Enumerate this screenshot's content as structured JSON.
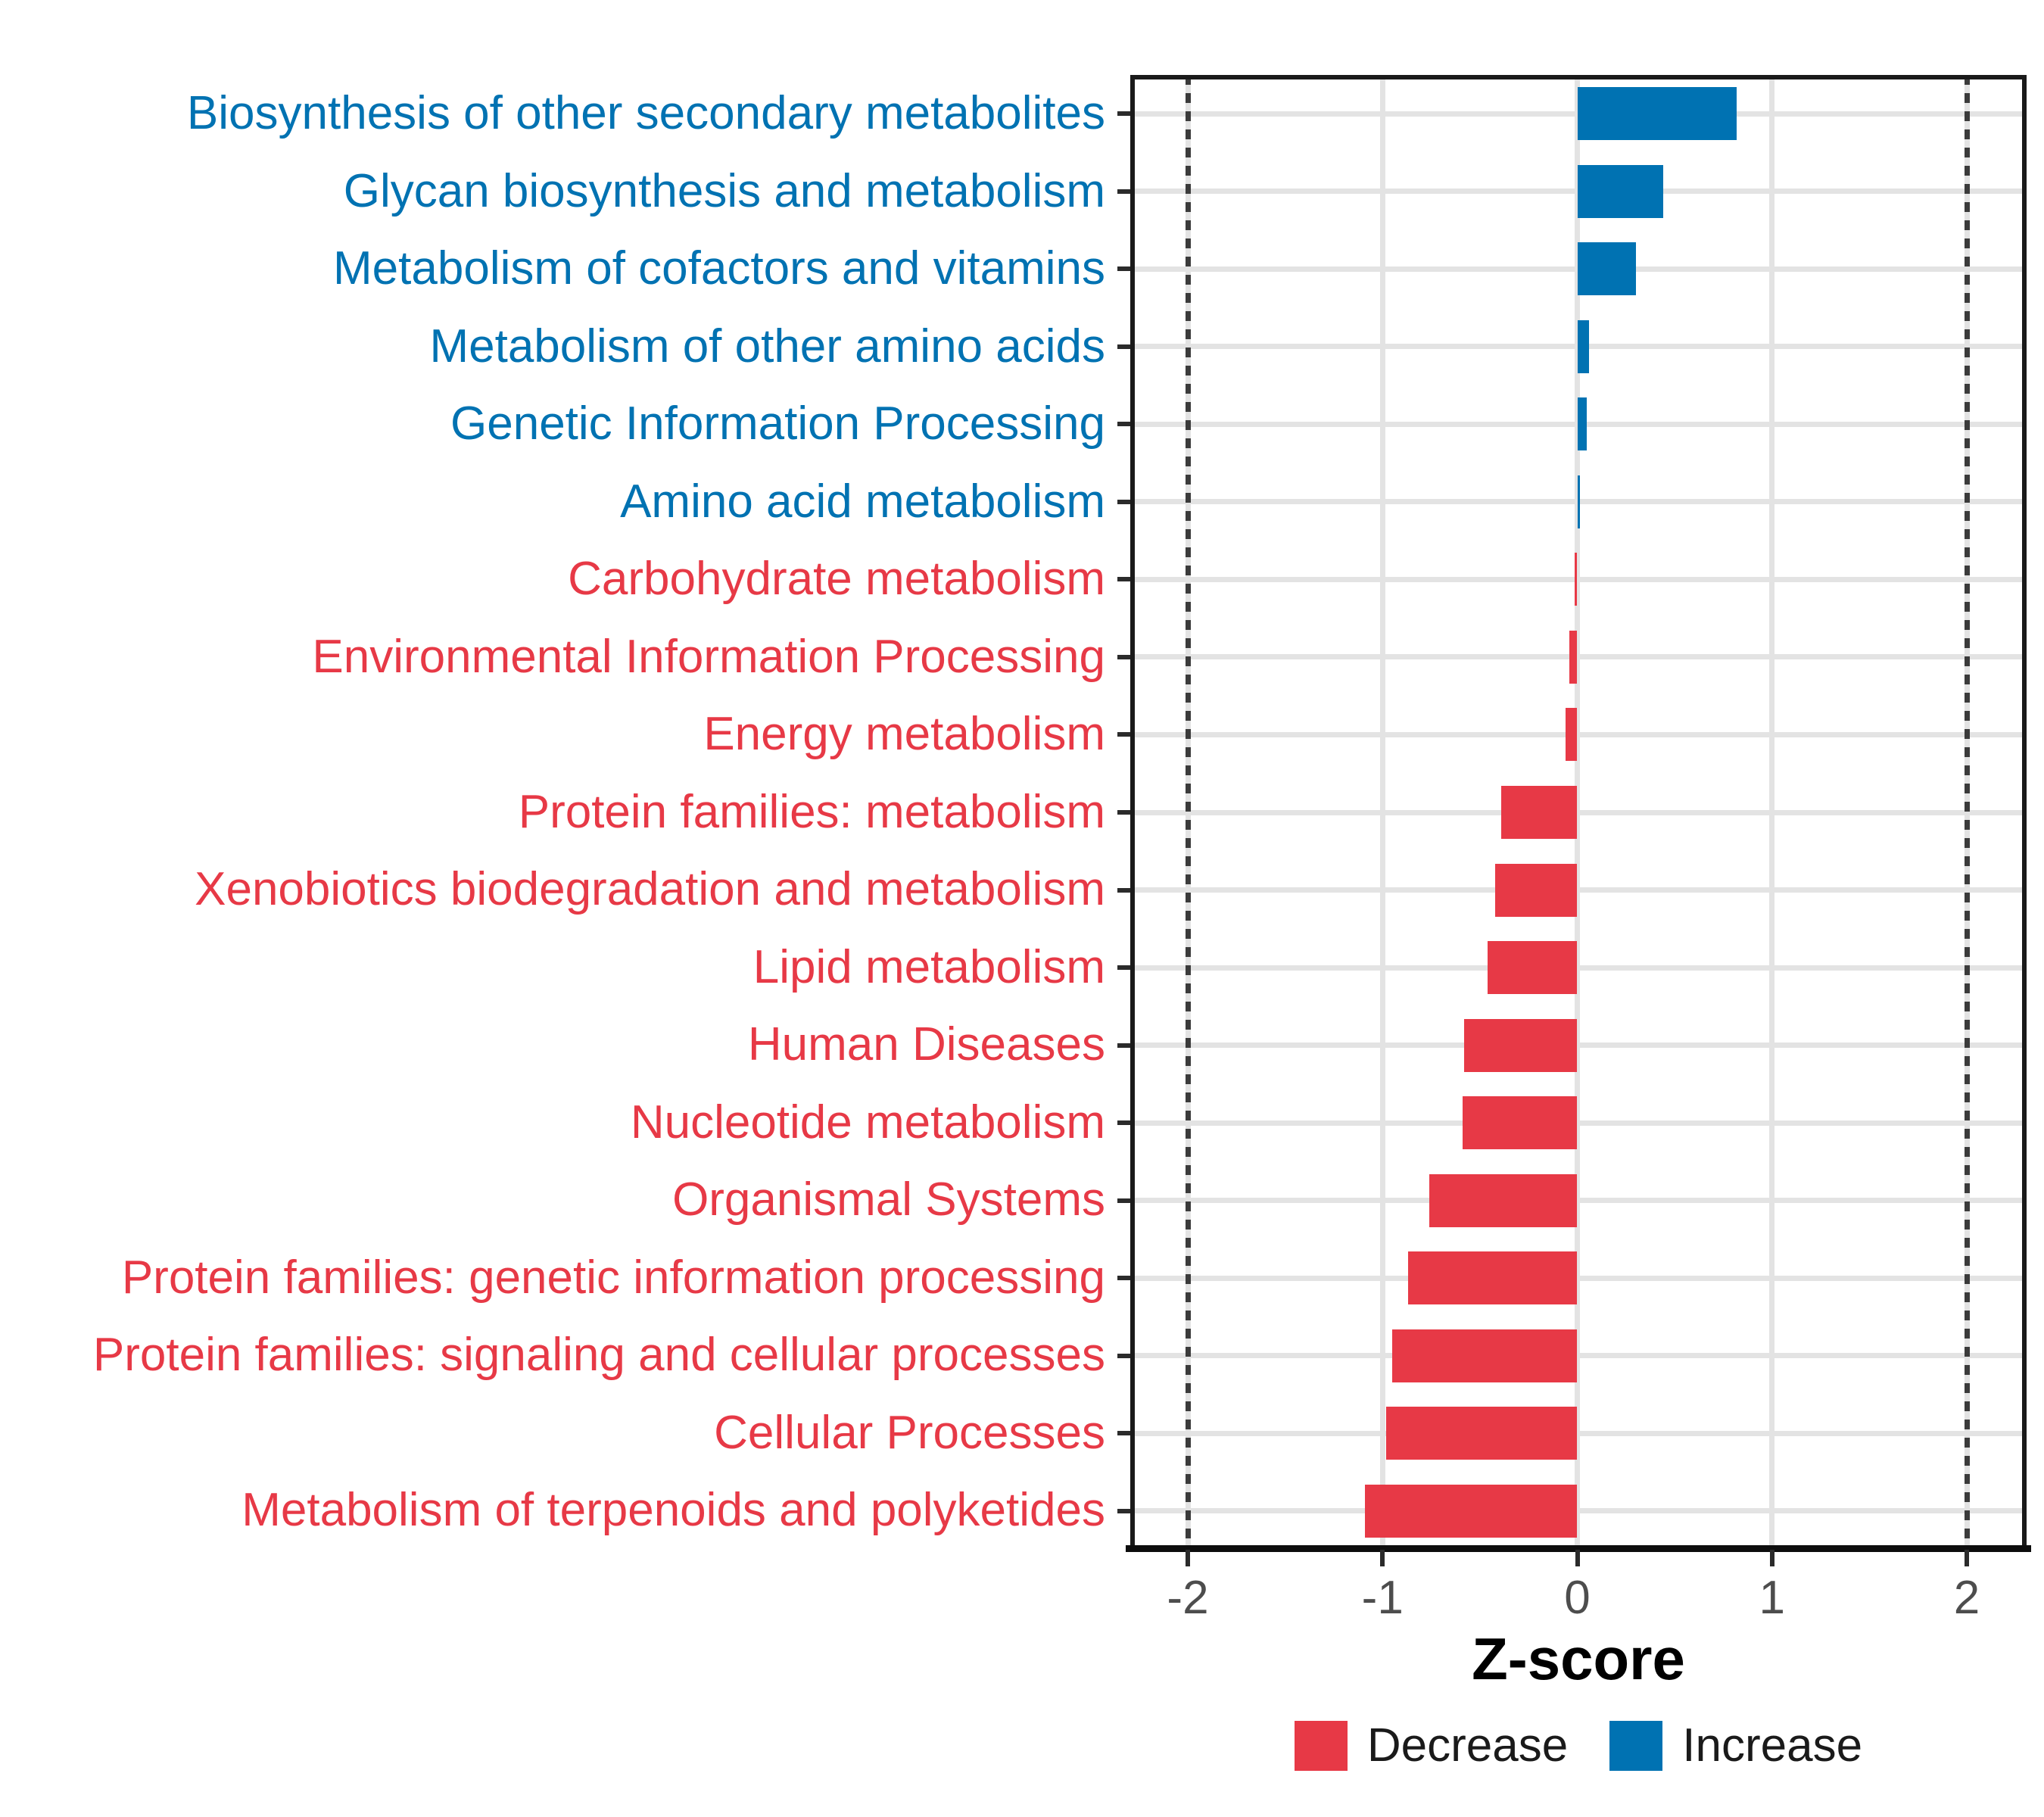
{
  "chart_data": {
    "type": "bar",
    "orientation": "horizontal",
    "title": "",
    "xlabel": "Z-score",
    "ylabel": "",
    "xlim": [
      -2.3,
      2.3
    ],
    "x_ticks": [
      "-2",
      "-1",
      "0",
      "1",
      "2"
    ],
    "x_tick_values": [
      -2,
      -1,
      0,
      1,
      2
    ],
    "reference_lines": [
      -2,
      2
    ],
    "grid": true,
    "legend_position": "bottom",
    "groups": {
      "Decrease": "#E73946",
      "Increase": "#0072B2"
    },
    "bars": [
      {
        "category": "Biosynthesis of other secondary metabolites",
        "value": 0.82,
        "group": "Increase"
      },
      {
        "category": "Glycan biosynthesis and metabolism",
        "value": 0.44,
        "group": "Increase"
      },
      {
        "category": "Metabolism of cofactors and vitamins",
        "value": 0.3,
        "group": "Increase"
      },
      {
        "category": "Metabolism of other amino acids",
        "value": 0.06,
        "group": "Increase"
      },
      {
        "category": "Genetic Information Processing",
        "value": 0.05,
        "group": "Increase"
      },
      {
        "category": "Amino acid metabolism",
        "value": 0.015,
        "group": "Increase"
      },
      {
        "category": "Carbohydrate metabolism",
        "value": -0.015,
        "group": "Decrease"
      },
      {
        "category": "Environmental Information Processing",
        "value": -0.04,
        "group": "Decrease"
      },
      {
        "category": "Energy metabolism",
        "value": -0.06,
        "group": "Decrease"
      },
      {
        "category": "Protein families: metabolism",
        "value": -0.39,
        "group": "Decrease"
      },
      {
        "category": "Xenobiotics biodegradation and metabolism",
        "value": -0.42,
        "group": "Decrease"
      },
      {
        "category": "Lipid metabolism",
        "value": -0.46,
        "group": "Decrease"
      },
      {
        "category": "Human Diseases",
        "value": -0.58,
        "group": "Decrease"
      },
      {
        "category": "Nucleotide metabolism",
        "value": -0.59,
        "group": "Decrease"
      },
      {
        "category": "Organismal Systems",
        "value": -0.76,
        "group": "Decrease"
      },
      {
        "category": "Protein families: genetic information processing",
        "value": -0.87,
        "group": "Decrease"
      },
      {
        "category": "Protein families: signaling and cellular processes",
        "value": -0.95,
        "group": "Decrease"
      },
      {
        "category": "Cellular Processes",
        "value": -0.98,
        "group": "Decrease"
      },
      {
        "category": "Metabolism of terpenoids and polyketides",
        "value": -1.09,
        "group": "Decrease"
      }
    ]
  },
  "legend": {
    "items": [
      {
        "label": "Decrease",
        "color": "#E73946"
      },
      {
        "label": "Increase",
        "color": "#0072B2"
      }
    ]
  }
}
